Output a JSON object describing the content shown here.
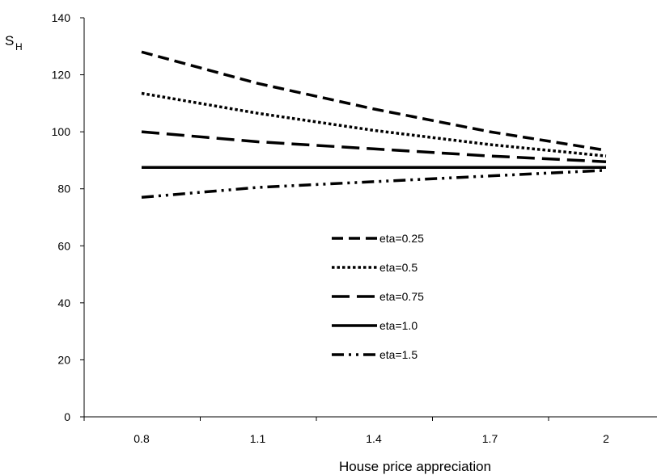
{
  "chart_data": {
    "type": "line",
    "xlabel": "House price appreciation",
    "ylabel_main": "S",
    "ylabel_sub": "H",
    "ylim": [
      0,
      140
    ],
    "yticks": [
      0,
      20,
      40,
      60,
      80,
      100,
      120,
      140
    ],
    "xticks": [
      "0.8",
      "1.1",
      "1.4",
      "1.7",
      "2"
    ],
    "x": [
      0.8,
      1.1,
      1.4,
      1.7,
      2.0
    ],
    "grid": false,
    "legend_position": "center",
    "series": [
      {
        "name": "eta=0.25",
        "dash": "dash",
        "values": [
          128,
          117,
          108,
          100,
          93.5
        ]
      },
      {
        "name": "eta=0.5",
        "dash": "dot",
        "values": [
          113.5,
          106.5,
          100.5,
          95.5,
          91.5
        ]
      },
      {
        "name": "eta=0.75",
        "dash": "longdash",
        "values": [
          100,
          96.5,
          94,
          91.5,
          89.5
        ]
      },
      {
        "name": "eta=1.0",
        "dash": "solid",
        "values": [
          87.5,
          87.5,
          87.5,
          87.5,
          87.5
        ]
      },
      {
        "name": "eta=1.5",
        "dash": "dashdotdot",
        "values": [
          77,
          80.5,
          82.5,
          84.5,
          86.5
        ]
      }
    ]
  }
}
